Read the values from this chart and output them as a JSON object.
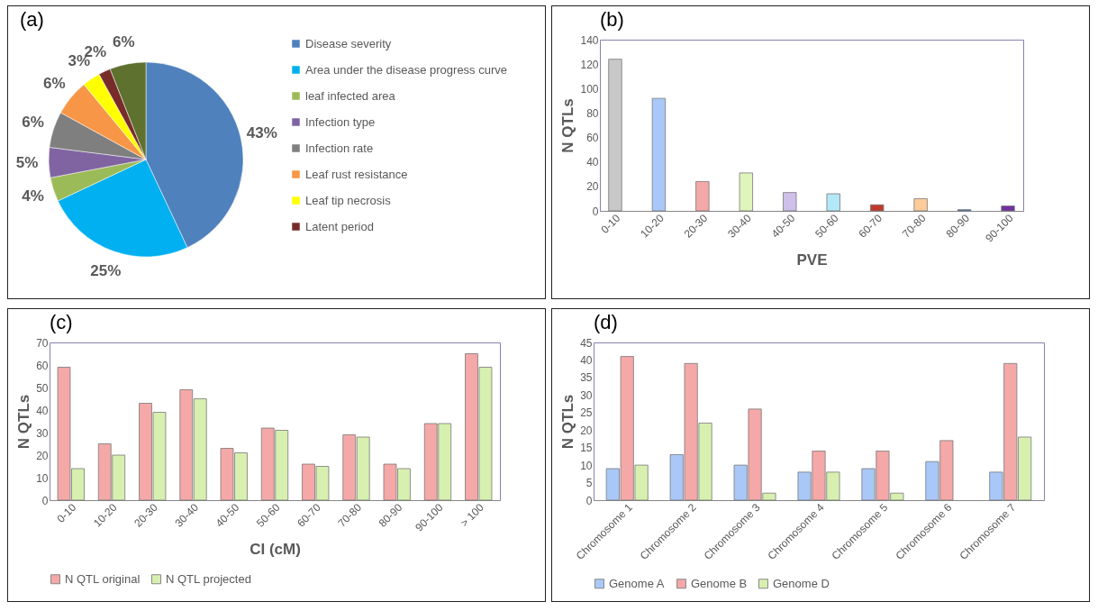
{
  "chart_data": [
    {
      "type": "pie",
      "title": "(a)",
      "categories": [
        "Disease severity",
        "Area under the disease progress curve",
        "leaf infected area",
        "Infection type",
        "Infection rate",
        "Leaf rust resistance",
        "Leaf tip necrosis",
        "Latent period",
        null
      ],
      "values": [
        43,
        25,
        4,
        5,
        6,
        6,
        3,
        2,
        6
      ],
      "colors": [
        "#4f81bd",
        "#00b0f0",
        "#9bbb59",
        "#8064a2",
        "#7f7f7f",
        "#f79646",
        "#ffff00",
        "#772c2a",
        "#5e712e"
      ],
      "value_labels": [
        "43%",
        "25%",
        "4%",
        "5%",
        "6%",
        "6%",
        "3%",
        "2%",
        "6%"
      ],
      "legend": "right"
    },
    {
      "type": "bar",
      "title": "(b)",
      "xlabel": "PVE",
      "ylabel": "N QTLs",
      "categories": [
        "0-10",
        "10-20",
        "20-30",
        "30-40",
        "40-50",
        "50-60",
        "60-70",
        "70-80",
        "80-90",
        "90-100"
      ],
      "values": [
        124,
        92,
        24,
        31,
        15,
        14,
        5,
        10,
        1,
        4
      ],
      "colors": [
        "#c8c8c8",
        "#a9c8f8",
        "#f5a8a8",
        "#dff5bb",
        "#cfc0ea",
        "#b3e8f8",
        "#c0392b",
        "#fdcc9a",
        "#4472c4",
        "#7030a0"
      ],
      "ylim": [
        0,
        140
      ],
      "yticks": [
        0,
        20,
        40,
        60,
        80,
        100,
        120,
        140
      ]
    },
    {
      "type": "bar",
      "title": "(c)",
      "xlabel": "CI (cM)",
      "ylabel": "N QTLs",
      "categories": [
        "0-10",
        "10-20",
        "20-30",
        "30-40",
        "40-50",
        "50-60",
        "60-70",
        "70-80",
        "80-90",
        "90-100",
        "> 100"
      ],
      "series": [
        {
          "name": "N QTL original",
          "color": "#f5a8a8",
          "values": [
            59,
            25,
            43,
            49,
            23,
            32,
            16,
            29,
            16,
            34,
            65
          ]
        },
        {
          "name": "N QTL projected",
          "color": "#d7f0b0",
          "values": [
            14,
            20,
            39,
            45,
            21,
            31,
            15,
            28,
            14,
            34,
            59
          ]
        }
      ],
      "ylim": [
        0,
        70
      ],
      "yticks": [
        0,
        10,
        20,
        30,
        40,
        50,
        60,
        70
      ],
      "legend": "bottom"
    },
    {
      "type": "bar",
      "title": "(d)",
      "ylabel": "N QTLs",
      "categories": [
        "Chromosome 1",
        "Chromosome 2",
        "Chromosome 3",
        "Chromosome 4",
        "Chromosome 5",
        "Chromosome 6",
        "Chromosome 7"
      ],
      "series": [
        {
          "name": "Genome A",
          "color": "#a9c8f8",
          "values": [
            9,
            13,
            10,
            8,
            9,
            11,
            8
          ]
        },
        {
          "name": "Genome B",
          "color": "#f5a8a8",
          "values": [
            41,
            39,
            26,
            14,
            14,
            17,
            39
          ]
        },
        {
          "name": "Genome D",
          "color": "#d7f0b0",
          "values": [
            10,
            22,
            2,
            8,
            2,
            null,
            18
          ]
        }
      ],
      "ylim": [
        0,
        45
      ],
      "yticks": [
        0,
        5,
        10,
        15,
        20,
        25,
        30,
        35,
        40,
        45
      ],
      "legend": "bottom"
    }
  ]
}
